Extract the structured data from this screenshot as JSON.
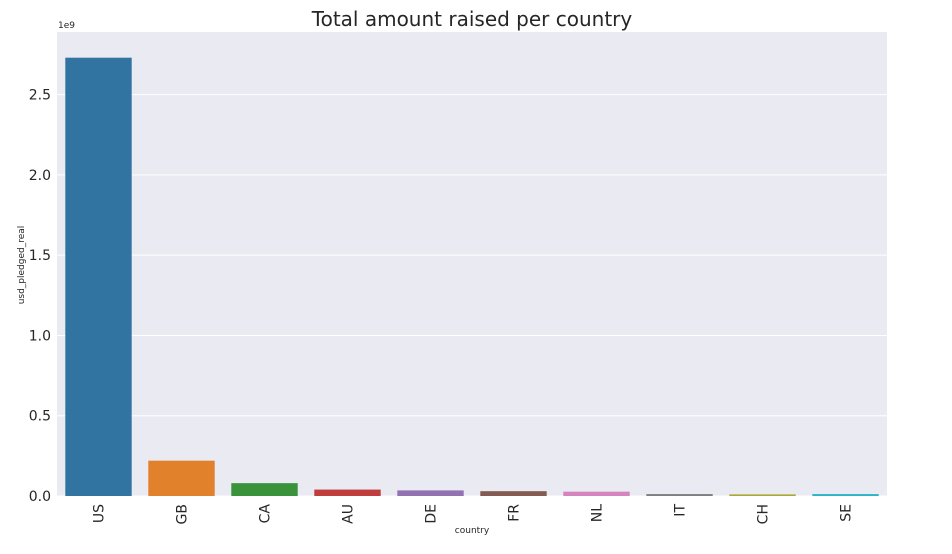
{
  "chart_data": {
    "type": "bar",
    "title": "Total amount raised per country",
    "xlabel": "country",
    "ylabel": "usd_pledged_real",
    "y_scale_label": "1e9",
    "y_scale": 1000000000,
    "ylim": [
      0,
      2.89
    ],
    "yticks": [
      0.0,
      0.5,
      1.0,
      1.5,
      2.0,
      2.5
    ],
    "ytick_labels": [
      "0.0",
      "0.5",
      "1.0",
      "1.5",
      "2.0",
      "2.5"
    ],
    "grid": true,
    "categories": [
      "US",
      "GB",
      "CA",
      "AU",
      "DE",
      "FR",
      "NL",
      "IT",
      "CH",
      "SE"
    ],
    "values": [
      2.73,
      0.22,
      0.08,
      0.04,
      0.035,
      0.03,
      0.027,
      0.012,
      0.01,
      0.012
    ],
    "colors": [
      "#3274a1",
      "#e1812c",
      "#3a923a",
      "#c03d3e",
      "#9372b2",
      "#845b53",
      "#d684bd",
      "#7f7f7f",
      "#a9aa35",
      "#2eb4c8"
    ],
    "background_color": "#eaeaf2",
    "grid_color": "#ffffff"
  }
}
